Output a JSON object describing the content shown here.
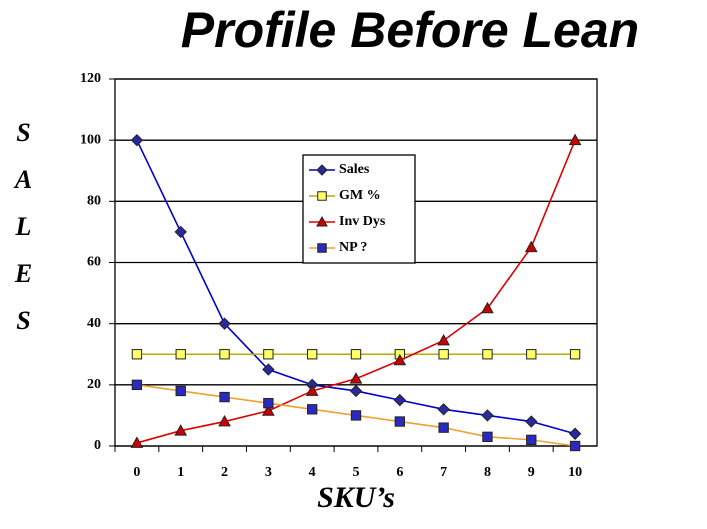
{
  "chart_data": {
    "type": "line",
    "title": "Profile Before Lean",
    "x_label": "SKU’s",
    "y_label": "SALES",
    "categories": [
      "0",
      "1",
      "2",
      "3",
      "4",
      "5",
      "6",
      "7",
      "8",
      "9",
      "10"
    ],
    "ylim": [
      0,
      120
    ],
    "yticks": [
      0,
      20,
      40,
      60,
      80,
      100,
      120
    ],
    "grid": true,
    "legend": "center",
    "series": [
      {
        "name": "Sales",
        "color": "#0000cc",
        "marker": "diamond",
        "marker_fill": "#2a2aa0",
        "values": [
          100,
          70,
          40,
          25,
          20,
          18,
          15,
          12,
          10,
          8,
          4
        ]
      },
      {
        "name": "GM %",
        "color": "#b0b000",
        "marker": "square",
        "marker_fill": "#ffff66",
        "values": [
          30,
          30,
          30,
          30,
          30,
          30,
          30,
          30,
          30,
          30,
          30
        ]
      },
      {
        "name": "Inv Dys",
        "color": "#e00000",
        "marker": "triangle",
        "marker_fill": "#cc0000",
        "values": [
          1,
          5,
          8,
          11.5,
          18,
          22,
          28,
          34.5,
          45,
          65,
          100
        ]
      },
      {
        "name": "NP ?",
        "color": "#f0a030",
        "marker": "square",
        "marker_fill": "#2a2ac0",
        "values": [
          20,
          18,
          16,
          14,
          12,
          10,
          8,
          6,
          3,
          2,
          0
        ]
      }
    ]
  }
}
